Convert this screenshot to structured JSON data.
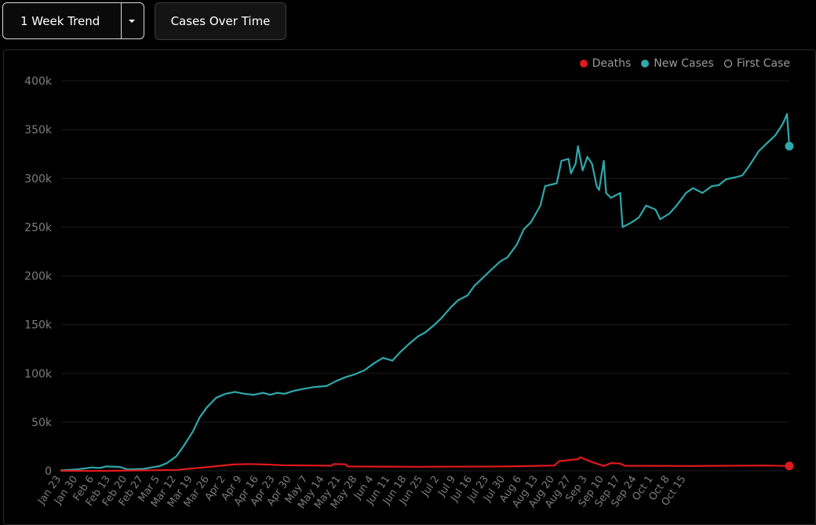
{
  "toolbar": {
    "trend_select": "1 Week Trend",
    "view_button": "Cases Over Time"
  },
  "colors": {
    "deaths": "#e0191c",
    "new_cases": "#2ea8ab",
    "first_case": "#cccccc",
    "grid": "#1c1c1c",
    "axis_text": "#7d7d7d"
  },
  "chart_data": {
    "type": "line",
    "ylim": [
      0,
      400000
    ],
    "y_ticks": [
      0,
      50000,
      100000,
      150000,
      200000,
      250000,
      300000,
      350000,
      400000
    ],
    "y_tick_labels": [
      "0",
      "50k",
      "100k",
      "150k",
      "200k",
      "250k",
      "300k",
      "350k",
      "400k"
    ],
    "x_tick_labels": [
      "Jan 23",
      "Jan 30",
      "Feb 6",
      "Feb 13",
      "Feb 20",
      "Feb 27",
      "Mar 5",
      "Mar 12",
      "Mar 19",
      "Mar 26",
      "Apr 2",
      "Apr 9",
      "Apr 16",
      "Apr 23",
      "Apr 30",
      "May 7",
      "May 14",
      "May 21",
      "May 28",
      "Jun 4",
      "Jun 11",
      "Jun 18",
      "Jun 25",
      "Jul 2",
      "Jul 9",
      "Jul 16",
      "Jul 23",
      "Jul 30",
      "Aug 6",
      "Aug 13",
      "Aug 20",
      "Aug 27",
      "Sep 3",
      "Sep 10",
      "Sep 17",
      "Sep 24",
      "Oct 1",
      "Oct 8",
      "Oct 15"
    ],
    "legend": [
      "Deaths",
      "New Cases",
      "First Case"
    ],
    "x_unit": "days since Jan 23",
    "series": [
      {
        "name": "New Cases",
        "points": [
          [
            0,
            500
          ],
          [
            7,
            1500
          ],
          [
            13,
            3500
          ],
          [
            16,
            3000
          ],
          [
            17,
            3200
          ],
          [
            19,
            4500
          ],
          [
            25,
            4000
          ],
          [
            28,
            1500
          ],
          [
            35,
            2000
          ],
          [
            42,
            5000
          ],
          [
            45,
            8000
          ],
          [
            49,
            15000
          ],
          [
            52,
            25000
          ],
          [
            56,
            40000
          ],
          [
            59,
            55000
          ],
          [
            62,
            65000
          ],
          [
            66,
            75000
          ],
          [
            70,
            79000
          ],
          [
            74,
            81000
          ],
          [
            78,
            79000
          ],
          [
            82,
            78000
          ],
          [
            86,
            80000
          ],
          [
            89,
            78000
          ],
          [
            92,
            80000
          ],
          [
            95,
            79000
          ],
          [
            99,
            82000
          ],
          [
            103,
            84000
          ],
          [
            108,
            86000
          ],
          [
            113,
            87000
          ],
          [
            117,
            92000
          ],
          [
            121,
            96000
          ],
          [
            125,
            99000
          ],
          [
            129,
            103000
          ],
          [
            133,
            110000
          ],
          [
            137,
            116000
          ],
          [
            141,
            113000
          ],
          [
            144,
            121000
          ],
          [
            148,
            130000
          ],
          [
            152,
            138000
          ],
          [
            155,
            142000
          ],
          [
            159,
            150000
          ],
          [
            162,
            157000
          ],
          [
            166,
            168000
          ],
          [
            169,
            175000
          ],
          [
            173,
            180000
          ],
          [
            176,
            190000
          ],
          [
            180,
            199000
          ],
          [
            183,
            206000
          ],
          [
            187,
            215000
          ],
          [
            190,
            219000
          ],
          [
            194,
            232000
          ],
          [
            197,
            248000
          ],
          [
            200,
            255000
          ],
          [
            204,
            272000
          ],
          [
            206,
            292000
          ],
          [
            211,
            295000
          ],
          [
            213,
            318000
          ],
          [
            216,
            320000
          ],
          [
            217,
            305000
          ],
          [
            219,
            315000
          ],
          [
            220,
            333000
          ],
          [
            222,
            308000
          ],
          [
            224,
            322000
          ],
          [
            226,
            315000
          ],
          [
            228,
            292000
          ],
          [
            229,
            288000
          ],
          [
            231,
            318000
          ],
          [
            232,
            285000
          ],
          [
            234,
            280000
          ],
          [
            238,
            285000
          ],
          [
            239,
            250000
          ],
          [
            243,
            255000
          ],
          [
            246,
            260000
          ],
          [
            249,
            272000
          ],
          [
            253,
            268000
          ],
          [
            255,
            258000
          ],
          [
            259,
            264000
          ],
          [
            262,
            272000
          ],
          [
            266,
            285000
          ],
          [
            269,
            290000
          ],
          [
            273,
            285000
          ],
          [
            277,
            292000
          ],
          [
            280,
            293000
          ],
          [
            283,
            299000
          ],
          [
            287,
            301000
          ],
          [
            290,
            303000
          ],
          [
            293,
            313000
          ],
          [
            297,
            328000
          ],
          [
            300,
            335000
          ],
          [
            304,
            344000
          ],
          [
            307,
            355000
          ],
          [
            308,
            360000
          ],
          [
            309,
            366000
          ],
          [
            310,
            333000
          ]
        ]
      },
      {
        "name": "Deaths",
        "points": [
          [
            0,
            0
          ],
          [
            20,
            0
          ],
          [
            49,
            1000
          ],
          [
            56,
            2500
          ],
          [
            63,
            4000
          ],
          [
            73,
            6500
          ],
          [
            80,
            7000
          ],
          [
            87,
            6500
          ],
          [
            94,
            5800
          ],
          [
            108,
            5500
          ],
          [
            115,
            5200
          ],
          [
            116,
            7000
          ],
          [
            121,
            6800
          ],
          [
            122,
            4500
          ],
          [
            150,
            4200
          ],
          [
            190,
            4500
          ],
          [
            210,
            5500
          ],
          [
            212,
            10000
          ],
          [
            220,
            12000
          ],
          [
            221,
            14000
          ],
          [
            226,
            9000
          ],
          [
            231,
            5000
          ],
          [
            234,
            8000
          ],
          [
            238,
            7500
          ],
          [
            240,
            5200
          ],
          [
            270,
            5000
          ],
          [
            300,
            5500
          ],
          [
            310,
            5000
          ]
        ]
      }
    ]
  }
}
